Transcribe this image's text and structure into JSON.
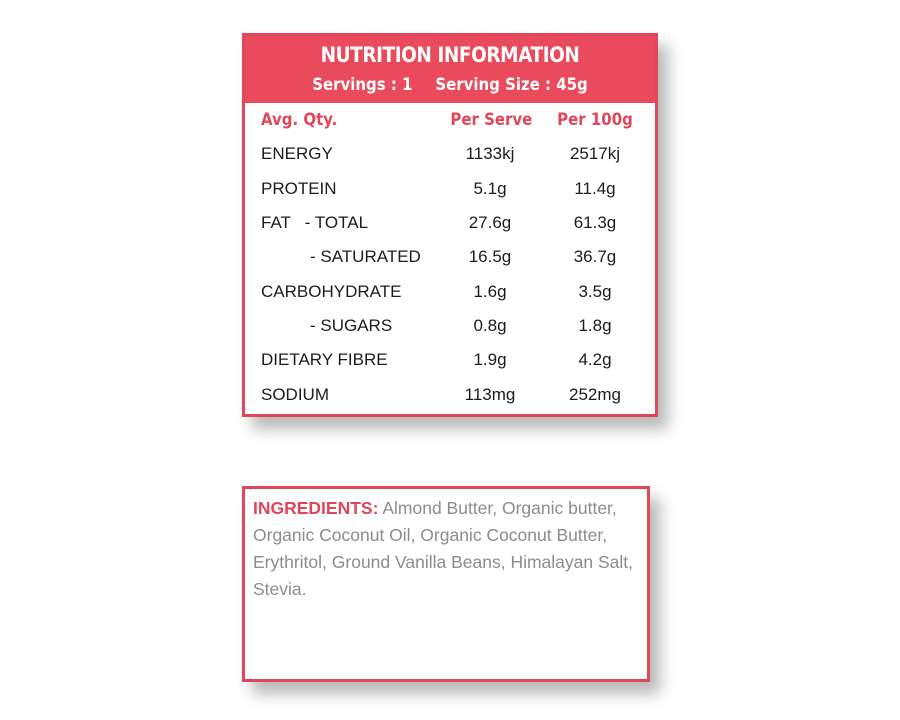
{
  "nutrition": {
    "title": "NUTRITION INFORMATION",
    "servings": "Servings : 1",
    "serving_size": "Serving Size : 45g",
    "columns": [
      "Avg. Qty.",
      "Per Serve",
      "Per 100g"
    ],
    "rows": [
      {
        "label": "ENERGY",
        "per_serve": "1133kj",
        "per_100g": "2517kj"
      },
      {
        "label": "PROTEIN",
        "per_serve": "5.1g",
        "per_100g": "11.4g"
      },
      {
        "label": "FAT   - TOTAL",
        "per_serve": "27.6g",
        "per_100g": "61.3g"
      },
      {
        "label": "- SATURATED",
        "per_serve": "16.5g",
        "per_100g": "36.7g"
      },
      {
        "label": "CARBOHYDRATE",
        "per_serve": "1.6g",
        "per_100g": "3.5g"
      },
      {
        "label": "- SUGARS",
        "per_serve": "0.8g",
        "per_100g": "1.8g"
      },
      {
        "label": "DIETARY FIBRE",
        "per_serve": "1.9g",
        "per_100g": "4.2g"
      },
      {
        "label": "SODIUM",
        "per_serve": "113mg",
        "per_100g": "252mg"
      }
    ],
    "accent_color": "#e94a5c"
  },
  "ingredients": {
    "label": "INGREDIENTS:",
    "text": "Almond Butter, Organic butter, Organic Coconut Oil, Organic Coconut Butter, Erythritol, Ground Vanilla Beans, Himalayan Salt, Stevia."
  }
}
